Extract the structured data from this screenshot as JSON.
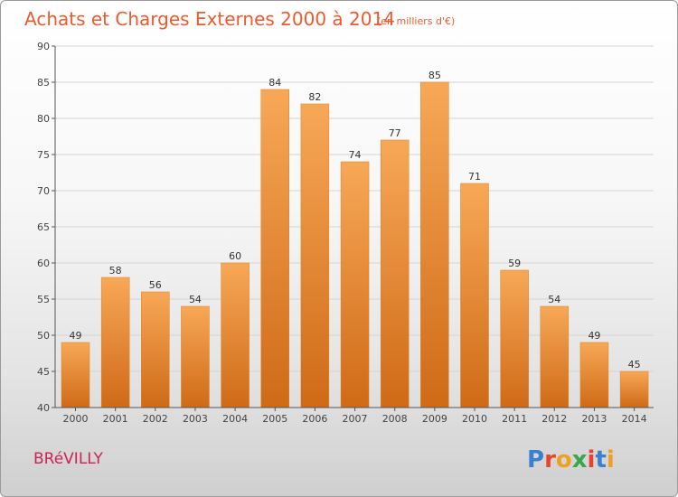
{
  "chart_data": {
    "type": "bar",
    "title": "Achats et Charges Externes 2000 à 2014",
    "subtitle": "(en milliers d'€)",
    "categories": [
      "2000",
      "2001",
      "2002",
      "2003",
      "2004",
      "2005",
      "2006",
      "2007",
      "2008",
      "2009",
      "2010",
      "2011",
      "2012",
      "2013",
      "2014"
    ],
    "values": [
      49,
      58,
      56,
      54,
      60,
      84,
      82,
      74,
      77,
      85,
      71,
      59,
      54,
      49,
      45
    ],
    "ylim": [
      40,
      90
    ],
    "yticks": [
      "40",
      "45",
      "50",
      "55",
      "60",
      "65",
      "70",
      "75",
      "80",
      "85",
      "90"
    ],
    "xlabel": "",
    "ylabel": "",
    "grid": true,
    "colors": {
      "bar_top": "#f7a857",
      "bar_bottom": "#cf6a17",
      "bar_edge": "#e0801f"
    }
  },
  "footer": {
    "commune": "BRéVILLY",
    "logo": "Proxiti"
  }
}
